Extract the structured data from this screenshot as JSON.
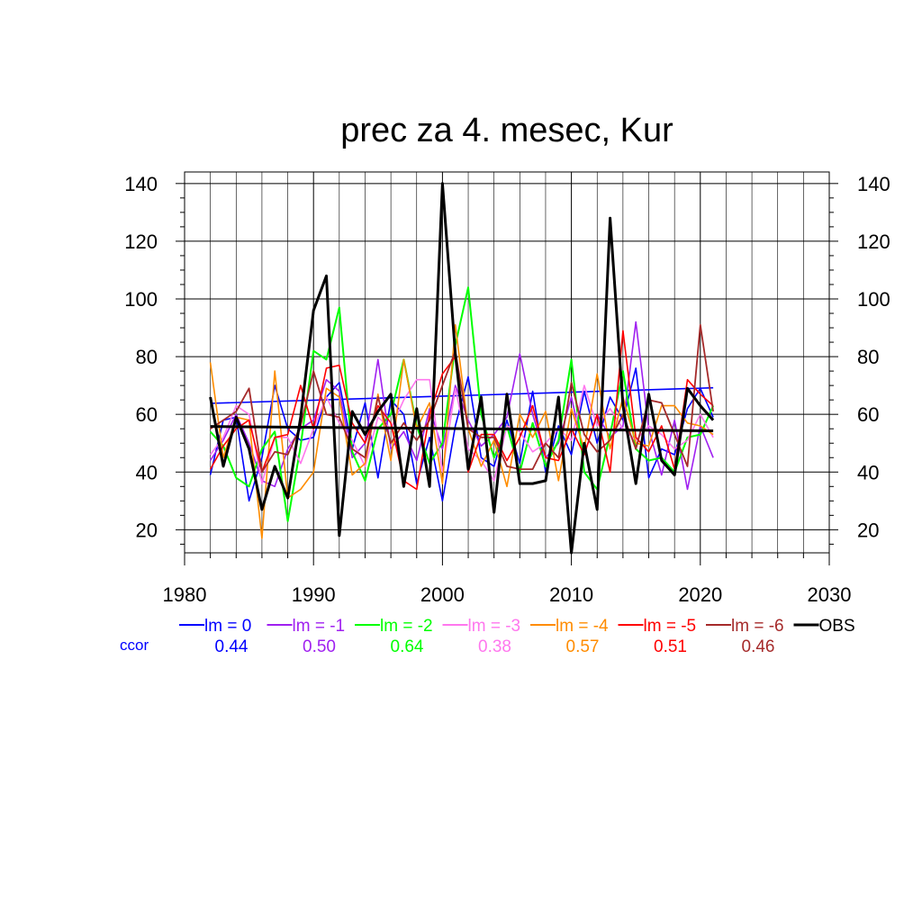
{
  "chart_data": {
    "type": "line",
    "title": "prec za 4. mesec, Kur",
    "xlim": [
      1980,
      2030
    ],
    "ylim": [
      12,
      144
    ],
    "x_ticks": [
      1980,
      1990,
      2000,
      2010,
      2020,
      2030
    ],
    "y_ticks": [
      20,
      40,
      60,
      80,
      100,
      120,
      140
    ],
    "grid": true,
    "years": [
      1982,
      1983,
      1984,
      1985,
      1986,
      1987,
      1988,
      1989,
      1990,
      1991,
      1992,
      1993,
      1994,
      1995,
      1996,
      1997,
      1998,
      1999,
      2000,
      2001,
      2002,
      2003,
      2004,
      2005,
      2006,
      2007,
      2008,
      2009,
      2010,
      2011,
      2012,
      2013,
      2014,
      2015,
      2016,
      2017,
      2018,
      2019,
      2020,
      2021
    ],
    "ccor_label": "ccor",
    "series": [
      {
        "name": "lm = 0",
        "color": "#0000ff",
        "width": 1.6,
        "ccor": "0.44",
        "values": [
          39,
          58,
          59,
          30,
          45,
          70,
          55,
          51,
          52,
          66,
          71,
          48,
          64,
          38,
          65,
          60,
          36,
          52,
          30,
          56,
          73,
          45,
          42,
          58,
          43,
          68,
          40,
          56,
          46,
          68,
          50,
          66,
          58,
          76,
          38,
          48,
          46,
          62,
          69,
          59
        ],
        "trend": [
          63.8,
          69.2
        ]
      },
      {
        "name": "lm = -1",
        "color": "#a020f0",
        "width": 1.6,
        "ccor": "0.50",
        "values": [
          44,
          51,
          60,
          50,
          37,
          35,
          48,
          55,
          58,
          72,
          68,
          45,
          50,
          79,
          48,
          54,
          44,
          62,
          48,
          70,
          58,
          49,
          53,
          59,
          81,
          60,
          45,
          50,
          66,
          46,
          60,
          52,
          56,
          92,
          55,
          39,
          58,
          34,
          56,
          45
        ]
      },
      {
        "name": "lm = -2",
        "color": "#00ff00",
        "width": 2.0,
        "ccor": "0.64",
        "values": [
          54,
          49,
          38,
          35,
          48,
          54,
          23,
          49,
          82,
          79,
          97,
          47,
          37,
          55,
          60,
          79,
          56,
          43,
          50,
          84,
          104,
          60,
          45,
          56,
          40,
          57,
          42,
          51,
          79,
          40,
          34,
          53,
          75,
          48,
          44,
          45,
          40,
          52,
          53,
          63
        ]
      },
      {
        "name": "lm = -3",
        "color": "#ff77ee",
        "width": 1.6,
        "ccor": "0.38",
        "values": [
          46,
          52,
          63,
          60,
          36,
          52,
          52,
          43,
          55,
          66,
          57,
          51,
          42,
          59,
          55,
          65,
          72,
          72,
          40,
          69,
          48,
          44,
          37,
          56,
          54,
          47,
          50,
          55,
          51,
          70,
          56,
          62,
          55,
          51,
          56,
          53,
          48,
          51,
          60,
          52
        ]
      },
      {
        "name": "lm = -4",
        "color": "#ff8c00",
        "width": 1.6,
        "ccor": "0.57",
        "values": [
          78,
          45,
          59,
          58,
          17,
          75,
          31,
          34,
          40,
          69,
          66,
          39,
          43,
          67,
          44,
          79,
          55,
          64,
          36,
          91,
          55,
          42,
          51,
          35,
          60,
          52,
          61,
          37,
          62,
          48,
          74,
          48,
          66,
          50,
          49,
          63,
          63,
          57,
          56,
          53
        ]
      },
      {
        "name": "lm = -5",
        "color": "#ff0000",
        "width": 1.6,
        "ccor": "0.51",
        "values": [
          41,
          49,
          55,
          58,
          40,
          52,
          53,
          70,
          55,
          76,
          77,
          57,
          50,
          63,
          57,
          37,
          34,
          60,
          74,
          80,
          40,
          53,
          53,
          44,
          52,
          63,
          45,
          44,
          55,
          46,
          60,
          40,
          89,
          52,
          47,
          56,
          41,
          72,
          67,
          63
        ]
      },
      {
        "name": "lm = -6",
        "color": "#a52a2a",
        "width": 1.8,
        "ccor": "0.46",
        "values": [
          55,
          58,
          61,
          69,
          40,
          47,
          46,
          56,
          75,
          60,
          59,
          48,
          45,
          66,
          50,
          57,
          51,
          58,
          70,
          82,
          55,
          52,
          52,
          42,
          41,
          41,
          50,
          45,
          71,
          53,
          47,
          51,
          60,
          48,
          65,
          64,
          53,
          42,
          91,
          61
        ]
      },
      {
        "name": "OBS",
        "color": "#000000",
        "width": 3.0,
        "ccor": "",
        "values": [
          66,
          42,
          59,
          48,
          27,
          42,
          31,
          59,
          96,
          108,
          18,
          61,
          53,
          61,
          67,
          35,
          62,
          35,
          140,
          81,
          41,
          66,
          26,
          67,
          36,
          36,
          37,
          66,
          12,
          50,
          27,
          128,
          63,
          36,
          67,
          44,
          39,
          69,
          63,
          58
        ],
        "trend": [
          55.8,
          54.3
        ]
      }
    ]
  }
}
